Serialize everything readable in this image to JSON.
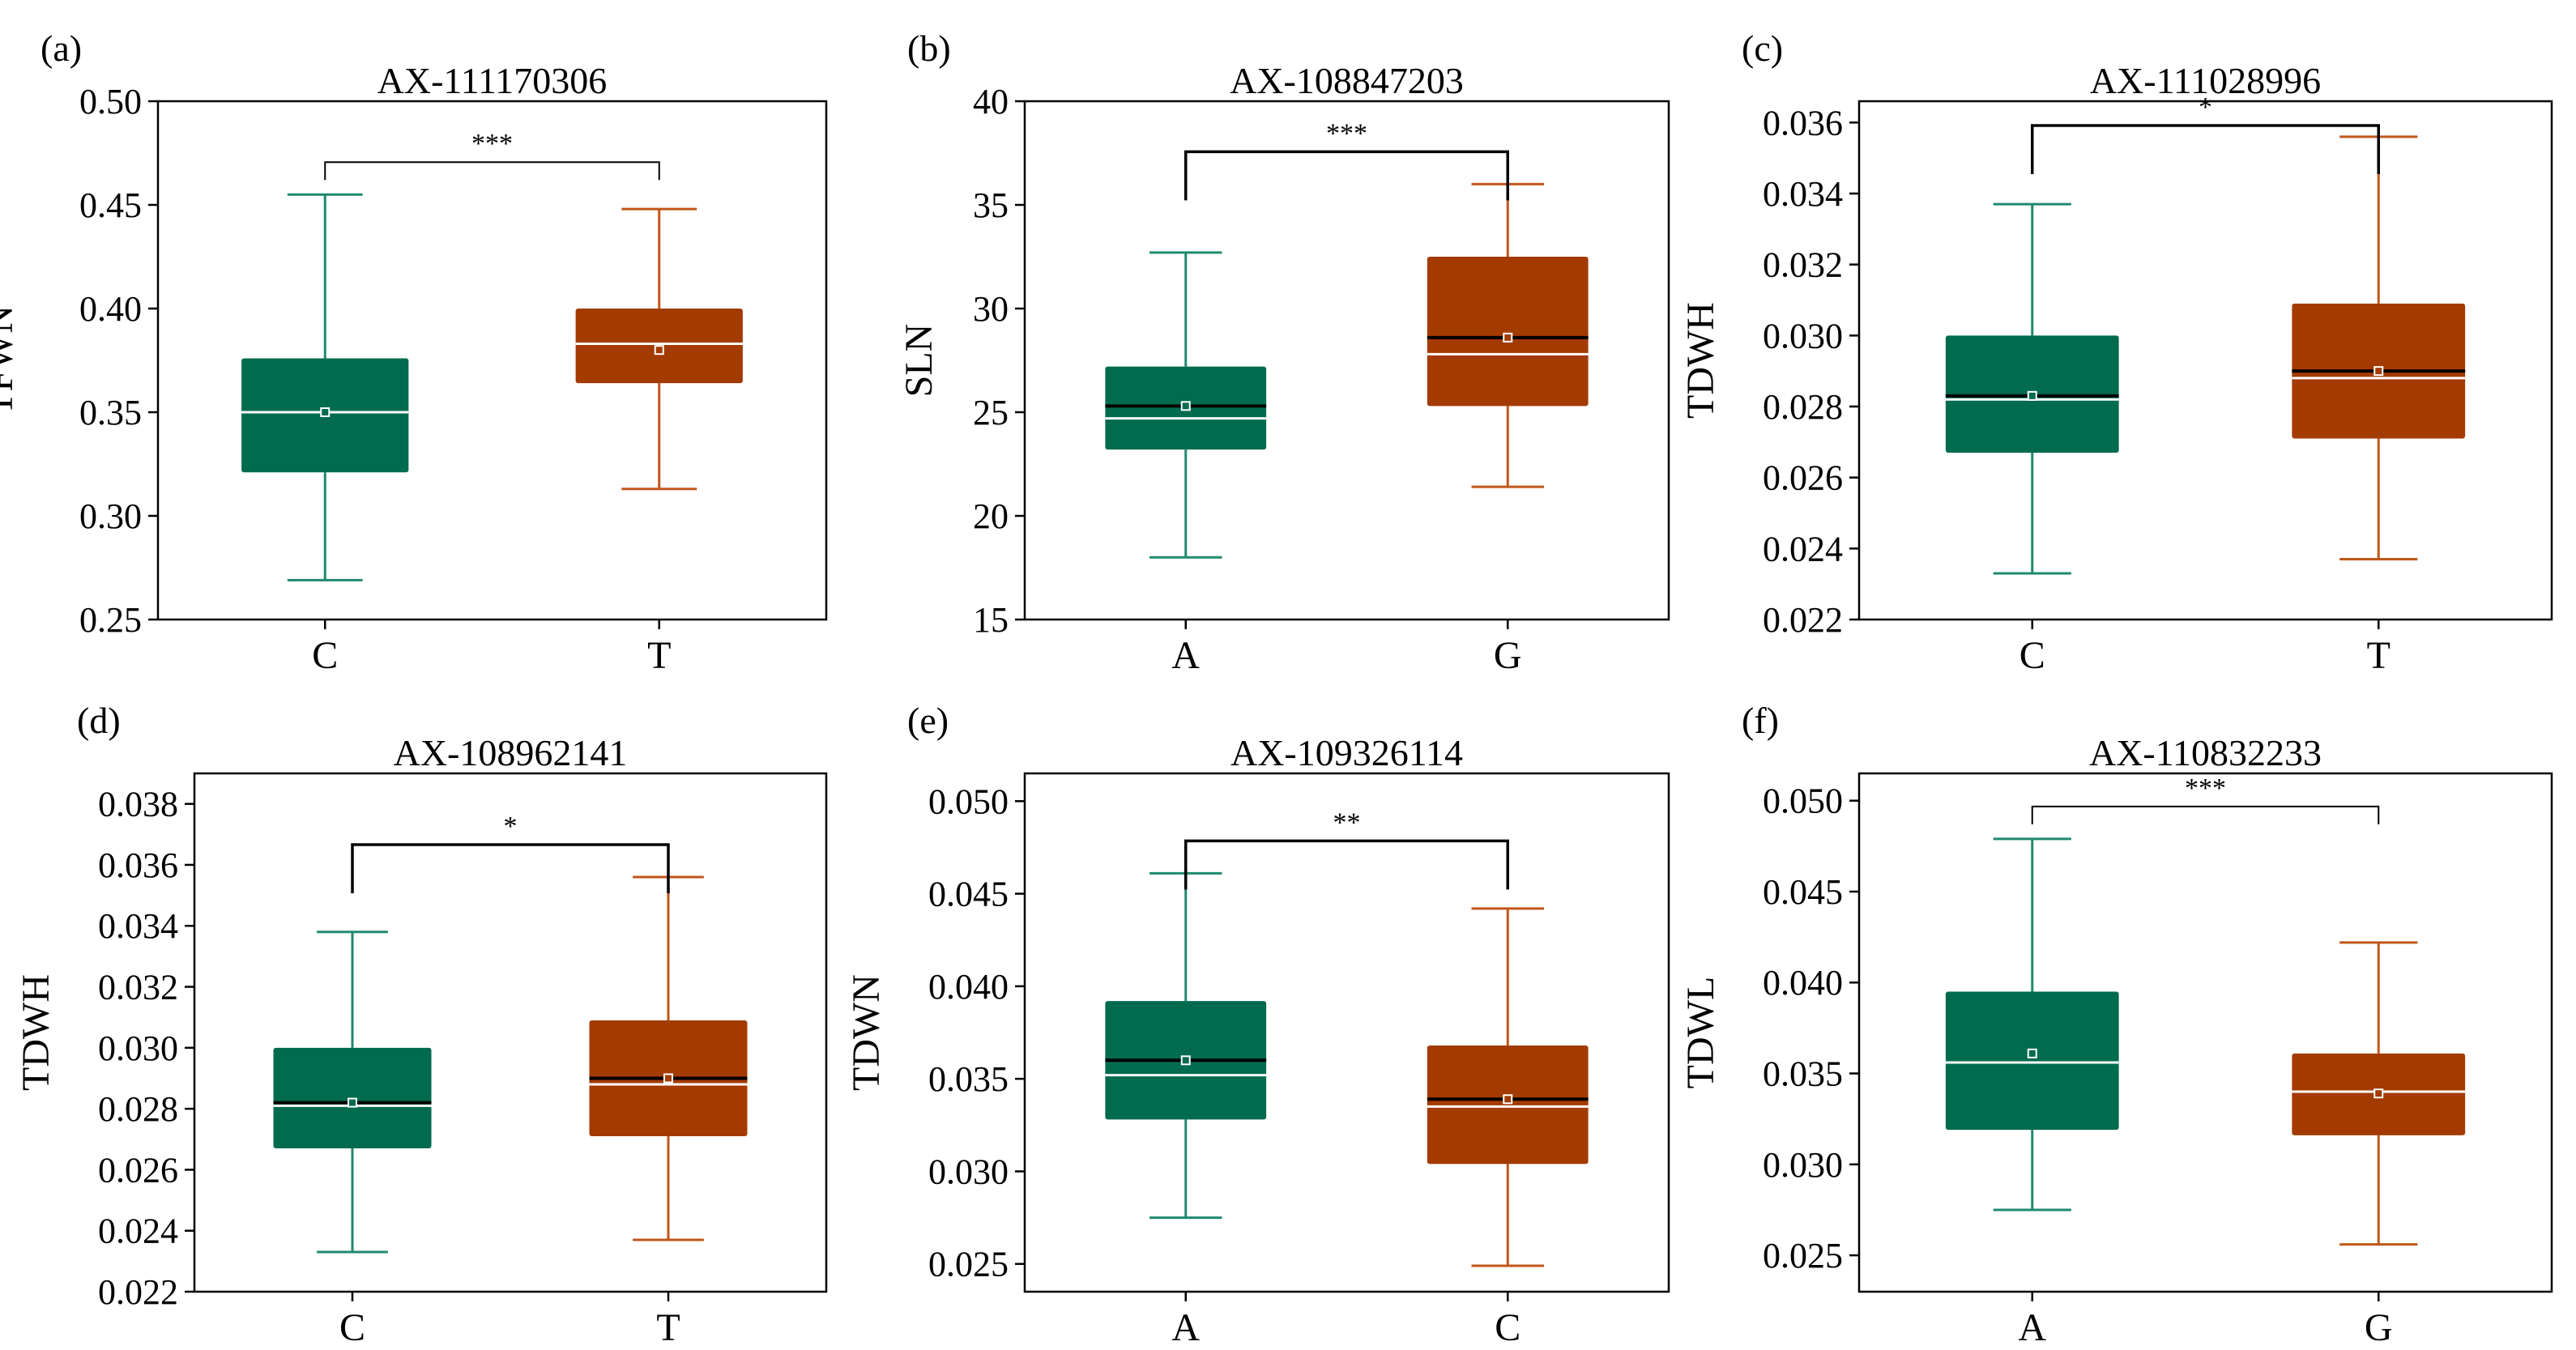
{
  "colors": {
    "group1": "#016b4e",
    "group1_line": "#1f8a6e",
    "group2": "#a33a00",
    "group2_line": "#c0561a",
    "median_light": "#ffffff",
    "median_dark": "#000000",
    "axis": "#000000"
  },
  "chart_data": [
    {
      "type": "box",
      "panel_label": "(a)",
      "title": "AX-111170306",
      "ylabel": "TFWN",
      "xlabel": "",
      "ylim": [
        0.25,
        0.5
      ],
      "yticks": [
        0.25,
        0.3,
        0.35,
        0.4,
        0.45,
        0.5
      ],
      "ytick_labels": [
        "0.25",
        "0.30",
        "0.35",
        "0.40",
        "0.45",
        "0.50"
      ],
      "categories": [
        "C",
        "T"
      ],
      "boxes": [
        {
          "min": 0.269,
          "q1": 0.321,
          "median": 0.35,
          "mean": 0.35,
          "q3": 0.376,
          "max": 0.455,
          "mean_line": false
        },
        {
          "min": 0.313,
          "q1": 0.364,
          "median": 0.383,
          "mean": 0.38,
          "q3": 0.4,
          "max": 0.448,
          "mean_line": false
        }
      ],
      "significance": "***",
      "sig_bracket": "thin"
    },
    {
      "type": "box",
      "panel_label": "(b)",
      "title": "AX-108847203",
      "ylabel": "SLN",
      "xlabel": "",
      "ylim": [
        15,
        40
      ],
      "yticks": [
        15,
        20,
        25,
        30,
        35,
        40
      ],
      "ytick_labels": [
        "15",
        "20",
        "25",
        "30",
        "35",
        "40"
      ],
      "categories": [
        "A",
        "G"
      ],
      "boxes": [
        {
          "min": 18.0,
          "q1": 23.2,
          "median": 24.7,
          "mean": 25.3,
          "q3": 27.2,
          "max": 32.7,
          "mean_line": true
        },
        {
          "min": 21.4,
          "q1": 25.3,
          "median": 27.8,
          "mean": 28.6,
          "q3": 32.5,
          "max": 36.0,
          "mean_line": true
        }
      ],
      "significance": "***",
      "sig_bracket": "bold"
    },
    {
      "type": "box",
      "panel_label": "(c)",
      "title": "AX-111028996",
      "ylabel": "TDWH",
      "xlabel": "",
      "ylim": [
        0.022,
        0.0366
      ],
      "yticks": [
        0.022,
        0.024,
        0.026,
        0.028,
        0.03,
        0.032,
        0.034,
        0.036
      ],
      "ytick_labels": [
        "0.022",
        "0.024",
        "0.026",
        "0.028",
        "0.030",
        "0.032",
        "0.034",
        "0.036"
      ],
      "categories": [
        "C",
        "T"
      ],
      "boxes": [
        {
          "min": 0.0233,
          "q1": 0.0267,
          "median": 0.0282,
          "mean": 0.0283,
          "q3": 0.03,
          "max": 0.0337,
          "mean_line": true
        },
        {
          "min": 0.0237,
          "q1": 0.0271,
          "median": 0.0288,
          "mean": 0.029,
          "q3": 0.0309,
          "max": 0.0356,
          "mean_line": true
        }
      ],
      "significance": "*",
      "sig_bracket": "bold"
    },
    {
      "type": "box",
      "panel_label": "(d)",
      "title": "AX-108962141",
      "ylabel": "TDWH",
      "xlabel": "",
      "ylim": [
        0.022,
        0.039
      ],
      "yticks": [
        0.022,
        0.024,
        0.026,
        0.028,
        0.03,
        0.032,
        0.034,
        0.036,
        0.038
      ],
      "ytick_labels": [
        "0.022",
        "0.024",
        "0.026",
        "0.028",
        "0.030",
        "0.032",
        "0.034",
        "0.036",
        "0.038"
      ],
      "categories": [
        "C",
        "T"
      ],
      "boxes": [
        {
          "min": 0.0233,
          "q1": 0.0267,
          "median": 0.0281,
          "mean": 0.0282,
          "q3": 0.03,
          "max": 0.0338,
          "mean_line": true
        },
        {
          "min": 0.0237,
          "q1": 0.0271,
          "median": 0.0288,
          "mean": 0.029,
          "q3": 0.0309,
          "max": 0.0356,
          "mean_line": true
        }
      ],
      "significance": "*",
      "sig_bracket": "bold"
    },
    {
      "type": "box",
      "panel_label": "(e)",
      "title": "AX-109326114",
      "ylabel": "TDWN",
      "xlabel": "",
      "ylim": [
        0.0235,
        0.0515
      ],
      "yticks": [
        0.025,
        0.03,
        0.035,
        0.04,
        0.045,
        0.05
      ],
      "ytick_labels": [
        "0.025",
        "0.030",
        "0.035",
        "0.040",
        "0.045",
        "0.050"
      ],
      "categories": [
        "A",
        "C"
      ],
      "boxes": [
        {
          "min": 0.0275,
          "q1": 0.0328,
          "median": 0.0352,
          "mean": 0.036,
          "q3": 0.0392,
          "max": 0.0461,
          "mean_line": true
        },
        {
          "min": 0.0249,
          "q1": 0.0304,
          "median": 0.0335,
          "mean": 0.0339,
          "q3": 0.0368,
          "max": 0.0442,
          "mean_line": true
        }
      ],
      "significance": "**",
      "sig_bracket": "bold"
    },
    {
      "type": "box",
      "panel_label": "(f)",
      "title": "AX-110832233",
      "ylabel": "TDWL",
      "xlabel": "",
      "ylim": [
        0.023,
        0.0515
      ],
      "yticks": [
        0.025,
        0.03,
        0.035,
        0.04,
        0.045,
        0.05
      ],
      "ytick_labels": [
        "0.025",
        "0.030",
        "0.035",
        "0.040",
        "0.045",
        "0.050"
      ],
      "categories": [
        "A",
        "G"
      ],
      "boxes": [
        {
          "min": 0.0275,
          "q1": 0.0319,
          "median": 0.0356,
          "mean": 0.0361,
          "q3": 0.0395,
          "max": 0.0479,
          "mean_line": false
        },
        {
          "min": 0.0256,
          "q1": 0.0316,
          "median": 0.034,
          "mean": 0.0339,
          "q3": 0.0361,
          "max": 0.0422,
          "mean_line": false
        }
      ],
      "significance": "***",
      "sig_bracket": "thin"
    }
  ]
}
